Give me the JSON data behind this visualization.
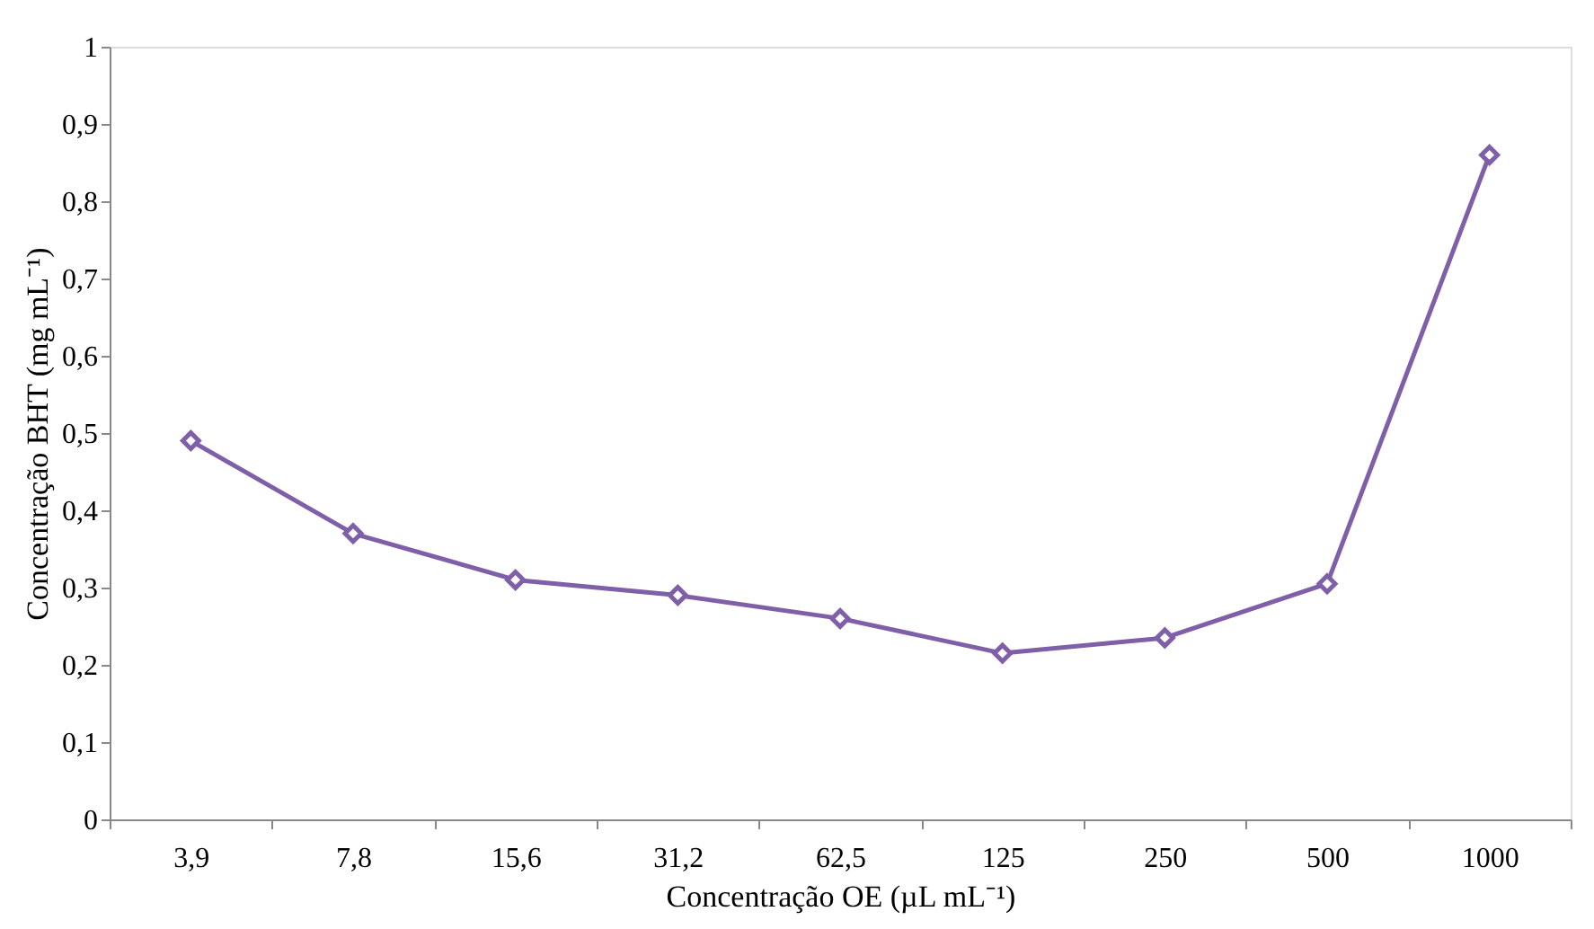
{
  "chart_data": {
    "type": "line",
    "xlabel": "Concentração OE (µL mL⁻¹)",
    "ylabel": "Concentração  BHT (mg mL⁻¹)",
    "categories": [
      "3,9",
      "7,8",
      "15,6",
      "31,2",
      "62,5",
      "125",
      "250",
      "500",
      "1000"
    ],
    "series": [
      {
        "color": "#7f60a8",
        "values": [
          0.49,
          0.37,
          0.31,
          0.29,
          0.26,
          0.215,
          0.235,
          0.305,
          0.86
        ]
      }
    ],
    "ylim": [
      0,
      1
    ],
    "yticks": [
      0,
      {
        "value": 0.1,
        "label": "0,1"
      },
      {
        "value": 0.2,
        "label": "0,2"
      },
      {
        "value": 0.3,
        "label": "0,3"
      },
      {
        "value": 0.4,
        "label": "0,4"
      },
      {
        "value": 0.5,
        "label": "0,5"
      },
      {
        "value": 0.6,
        "label": "0,6"
      },
      {
        "value": 0.7,
        "label": "0,7"
      },
      {
        "value": 0.8,
        "label": "0,8"
      },
      {
        "value": 0.9,
        "label": "0,9"
      },
      1
    ],
    "marker": "diamond",
    "line_style": "solid",
    "grid": false
  }
}
